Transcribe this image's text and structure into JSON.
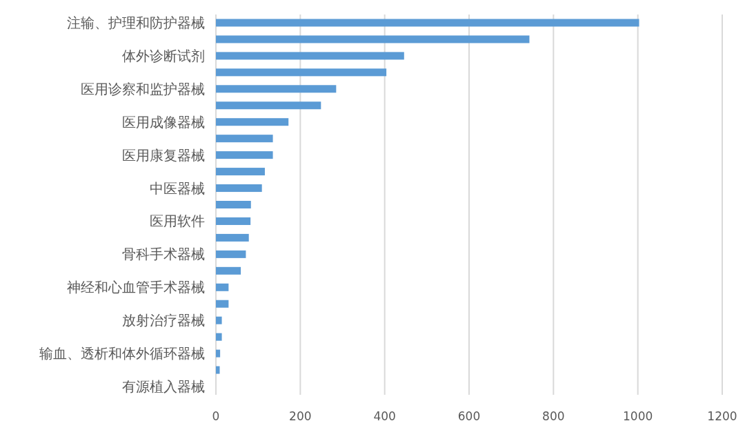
{
  "chart_data": {
    "type": "bar",
    "orientation": "horizontal",
    "categories": [
      "注输、护理和防护器械",
      null,
      "体外诊断试剂",
      null,
      "医用诊察和监护器械",
      null,
      "医用成像器械",
      null,
      "医用康复器械",
      null,
      "中医器械",
      null,
      "医用软件",
      null,
      "骨科手术器械",
      null,
      "神经和心血管手术器械",
      null,
      "放射治疗器械",
      null,
      "输血、透析和体外循环器械",
      null,
      "有源植入器械"
    ],
    "values": [
      1003,
      743,
      446,
      404,
      285,
      249,
      172,
      135,
      135,
      116,
      109,
      83,
      82,
      78,
      71,
      59,
      30,
      30,
      14,
      14,
      10,
      9,
      0
    ],
    "color": "#5b9bd5",
    "xlim": [
      0,
      1200
    ],
    "xticks": [
      0,
      200,
      400,
      600,
      800,
      1000,
      1200
    ],
    "grid": "x"
  }
}
